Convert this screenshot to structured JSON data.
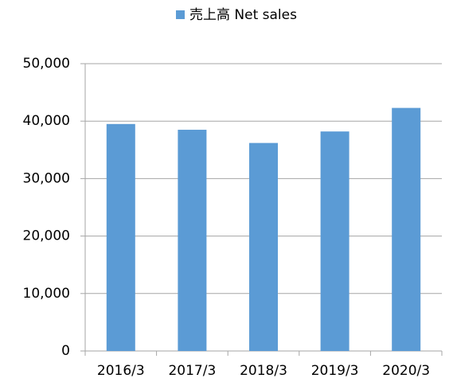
{
  "chart_data": {
    "type": "bar",
    "legend": "top",
    "series": [
      {
        "name": "売上高 Net sales",
        "color": "#5b9bd5",
        "values": [
          39500,
          38500,
          36200,
          38200,
          42300
        ]
      }
    ],
    "categories": [
      "2016/3",
      "2017/3",
      "2018/3",
      "2019/3",
      "2020/3"
    ],
    "ylim": [
      0,
      50000
    ],
    "yticks": [
      0,
      {
        "value": 10000,
        "label": "10,000"
      },
      {
        "value": 20000,
        "label": "20,000"
      },
      {
        "value": 30000,
        "label": "30,000"
      },
      {
        "value": 40000,
        "label": "40,000"
      },
      {
        "value": 50000,
        "label": "50,000"
      }
    ],
    "grid": true
  }
}
